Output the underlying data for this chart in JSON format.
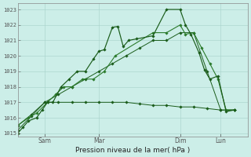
{
  "background_color": "#cceee8",
  "grid_color": "#aad4cc",
  "line_color_dark": "#1a5c1a",
  "line_color_mid": "#2a7a2a",
  "xlabel": "Pression niveau de la mer( hPa )",
  "ylim": [
    1014.8,
    1023.4
  ],
  "yticks": [
    1015,
    1016,
    1017,
    1018,
    1019,
    1020,
    1021,
    1022,
    1023
  ],
  "xtick_labels": [
    "Sam",
    "Mar",
    "Dim",
    "Lun"
  ],
  "xlim": [
    0,
    8.5
  ],
  "xtick_positions": [
    1.0,
    3.0,
    6.0,
    7.5
  ],
  "series_jagged_x": [
    0.0,
    0.2,
    0.4,
    0.7,
    0.9,
    1.1,
    1.3,
    1.6,
    1.9,
    2.2,
    2.5,
    2.8,
    3.0,
    3.2,
    3.5,
    3.7,
    3.9,
    4.1,
    4.4,
    5.0,
    5.5,
    6.0,
    6.2,
    6.4,
    6.7,
    6.9,
    7.1,
    7.4,
    7.7,
    8.0
  ],
  "series_jagged_y": [
    1015.0,
    1015.4,
    1015.8,
    1016.0,
    1016.5,
    1017.0,
    1017.0,
    1018.0,
    1018.5,
    1019.0,
    1019.0,
    1019.8,
    1020.3,
    1020.4,
    1021.85,
    1021.9,
    1020.6,
    1021.0,
    1021.1,
    1021.3,
    1023.0,
    1023.0,
    1022.0,
    1021.4,
    1020.2,
    1019.1,
    1018.5,
    1018.7,
    1016.4,
    1016.5
  ],
  "series_smooth_x": [
    0.0,
    0.4,
    0.7,
    1.1,
    1.4,
    1.7,
    2.0,
    2.4,
    2.8,
    3.2,
    3.6,
    5.0,
    5.5,
    6.0,
    6.2,
    6.5,
    6.8,
    7.1,
    7.4,
    7.7,
    8.0
  ],
  "series_smooth_y": [
    1015.5,
    1016.0,
    1016.3,
    1017.0,
    1017.5,
    1018.0,
    1018.0,
    1018.5,
    1018.5,
    1019.0,
    1020.0,
    1021.5,
    1021.5,
    1022.0,
    1021.4,
    1021.5,
    1020.5,
    1019.5,
    1018.5,
    1016.5,
    1016.5
  ],
  "series_flat_x": [
    0.0,
    0.5,
    1.0,
    1.5,
    2.0,
    2.5,
    3.0,
    3.5,
    4.0,
    4.5,
    5.0,
    5.5,
    6.0,
    6.5,
    7.0,
    7.5,
    8.0
  ],
  "series_flat_y": [
    1015.2,
    1016.1,
    1017.0,
    1017.0,
    1017.0,
    1017.0,
    1017.0,
    1017.0,
    1017.0,
    1016.9,
    1016.8,
    1016.8,
    1016.7,
    1016.7,
    1016.6,
    1016.5,
    1016.5
  ],
  "series_diag_x": [
    0.0,
    0.5,
    1.0,
    1.5,
    2.0,
    2.5,
    3.0,
    3.5,
    4.0,
    4.5,
    5.0,
    5.5,
    6.0,
    6.5,
    7.0,
    7.5,
    8.0
  ],
  "series_diag_y": [
    1015.5,
    1016.2,
    1017.0,
    1017.5,
    1018.0,
    1018.5,
    1019.0,
    1019.5,
    1020.0,
    1020.5,
    1021.0,
    1021.0,
    1021.5,
    1021.5,
    1019.0,
    1016.5,
    1016.5
  ]
}
